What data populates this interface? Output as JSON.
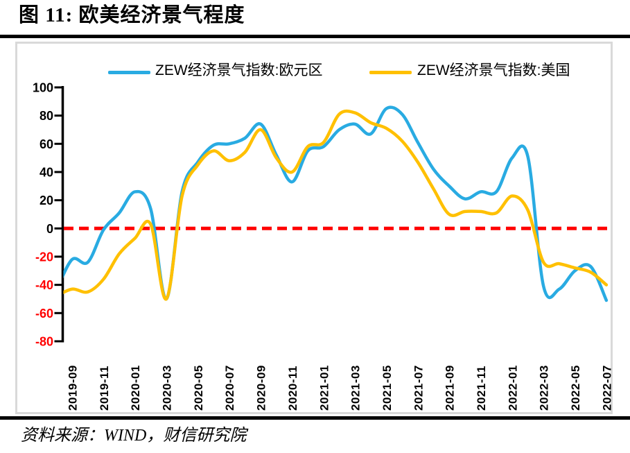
{
  "figure": {
    "title": "图 11: 欧美经济景气程度",
    "source": "资料来源：WIND，财信研究院"
  },
  "legend": [
    {
      "label": "ZEW经济景气指数:欧元区",
      "color": "#29ABE2"
    },
    {
      "label": "ZEW经济景气指数:美国",
      "color": "#FFC000"
    }
  ],
  "chart_data": {
    "type": "line",
    "title": "欧美经济景气程度",
    "categories": [
      "2019-08",
      "2019-09",
      "2019-10",
      "2019-11",
      "2019-12",
      "2020-01",
      "2020-02",
      "2020-03",
      "2020-04",
      "2020-05",
      "2020-06",
      "2020-07",
      "2020-08",
      "2020-09",
      "2020-10",
      "2020-11",
      "2020-12",
      "2021-01",
      "2021-02",
      "2021-03",
      "2021-04",
      "2021-05",
      "2021-06",
      "2021-07",
      "2021-08",
      "2021-09",
      "2021-10",
      "2021-11",
      "2021-12",
      "2022-01",
      "2022-02",
      "2022-03",
      "2022-04",
      "2022-05",
      "2022-06",
      "2022-07"
    ],
    "series": [
      {
        "name": "ZEW经济景气指数:欧元区",
        "color": "#29ABE2",
        "values": [
          -44,
          -22,
          -24,
          -1,
          11,
          26,
          14,
          -50,
          26,
          47,
          59,
          60,
          64,
          74,
          52,
          33,
          55,
          58,
          70,
          74,
          67,
          85,
          81,
          61,
          42,
          30,
          21,
          26,
          26,
          50,
          51,
          -41,
          -43,
          -30,
          -27,
          -51
        ]
      },
      {
        "name": "ZEW经济景气指数:美国",
        "color": "#FFC000",
        "values": [
          -48,
          -43,
          -45,
          -36,
          -18,
          -7,
          3,
          -50,
          23,
          45,
          55,
          48,
          54,
          70,
          50,
          40,
          58,
          61,
          81,
          82,
          75,
          71,
          62,
          47,
          28,
          10,
          12,
          12,
          11,
          23,
          13,
          -24,
          -25,
          -28,
          -31,
          -40
        ]
      }
    ],
    "x_tick_labels": [
      "2019-09",
      "2019-11",
      "2020-01",
      "2020-03",
      "2020-05",
      "2020-07",
      "2020-09",
      "2020-11",
      "2021-01",
      "2021-03",
      "2021-05",
      "2021-07",
      "2021-09",
      "2021-11",
      "2022-01",
      "2022-03",
      "2022-05",
      "2022-07"
    ],
    "y_ticks": [
      100,
      80,
      60,
      40,
      20,
      0,
      -20,
      -40,
      -60,
      -80
    ],
    "ylim": [
      -80,
      100
    ],
    "baseline": {
      "value": 0,
      "color": "#FF0000",
      "style": "dashed"
    },
    "grid": false,
    "legend_position": "top",
    "axis_colors": {
      "positive_labels": "#000000",
      "negative_labels": "#FF0000",
      "axis": "#000000"
    }
  }
}
